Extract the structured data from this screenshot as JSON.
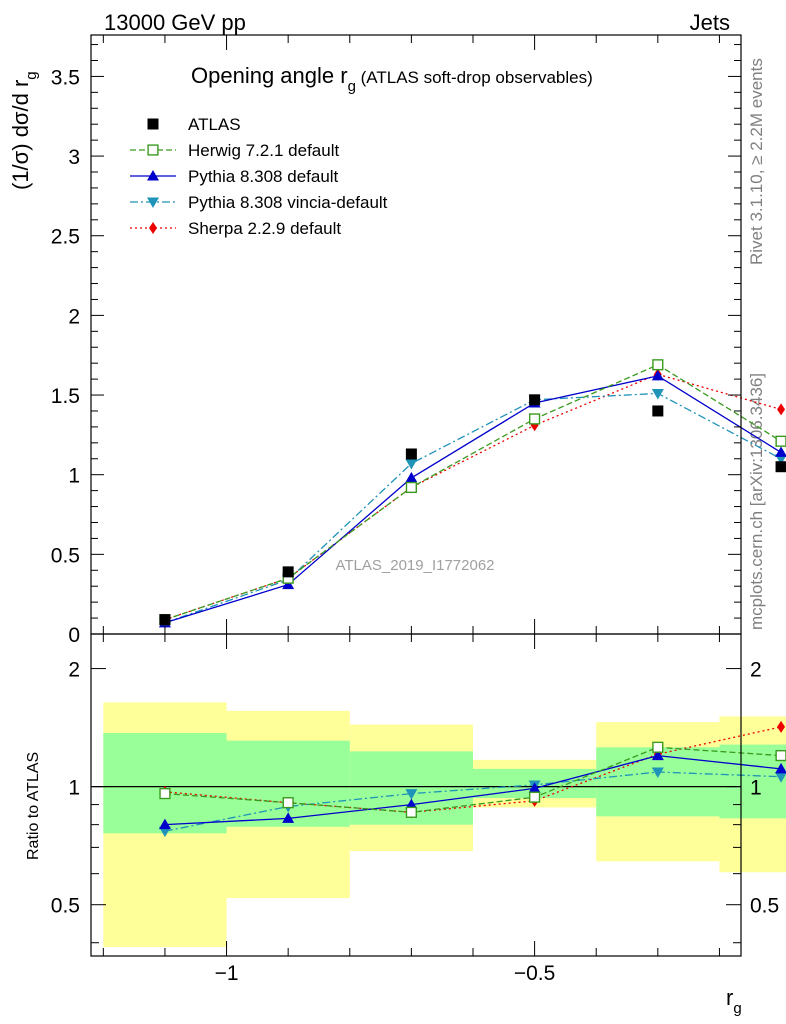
{
  "header": {
    "energy": "13000 GeV pp",
    "process": "Jets",
    "rivet": "Rivet 3.1.10, ≥ 2.2M events",
    "source": "mcplots.cern.ch [arXiv:1306.3436]",
    "analysis": "ATLAS_2019_I1772062"
  },
  "main_plot": {
    "title_main": "Opening angle r",
    "title_sub": "g",
    "title_rest": " (ATLAS soft-drop observables)",
    "ylabel": "(1/σ) dσ/d r",
    "ylabel_sub": "g",
    "y_ticks": [
      "0",
      "0.5",
      "1",
      "1.5",
      "2",
      "2.5",
      "3",
      "3.5"
    ]
  },
  "ratio_plot": {
    "ylabel": "Ratio to ATLAS",
    "y_ticks": [
      "0.5",
      "1",
      "2"
    ],
    "x_ticks": [
      "−1",
      "−0.5"
    ],
    "xlabel": "r",
    "xlabel_sub": "g"
  },
  "legend": [
    {
      "label": "ATLAS"
    },
    {
      "label": "Herwig 7.2.1 default"
    },
    {
      "label": "Pythia 8.308 default"
    },
    {
      "label": "Pythia 8.308 vincia-default"
    },
    {
      "label": "Sherpa 2.2.9 default"
    }
  ],
  "chart_data": [
    {
      "type": "line",
      "title": "Opening angle r_g (ATLAS soft-drop observables)",
      "xlabel": "r_g",
      "ylabel": "(1/σ) dσ/d r_g",
      "xlim": [
        -1.22,
        -0.165
      ],
      "ylim": [
        0,
        3.76
      ],
      "x": [
        -1.1,
        -0.9,
        -0.7,
        -0.5,
        -0.3,
        -0.1
      ],
      "bin_edges": [
        -1.2,
        -1.0,
        -0.8,
        -0.6,
        -0.4,
        -0.2,
        -0.05
      ],
      "series": [
        {
          "name": "ATLAS",
          "values": [
            0.09,
            0.39,
            1.13,
            1.47,
            1.4,
            1.05
          ],
          "color": "#000000",
          "marker": "square"
        },
        {
          "name": "Herwig 7.2.1 default",
          "values": [
            0.09,
            0.35,
            0.92,
            1.35,
            1.69,
            1.21
          ],
          "color": "#3a9a1e",
          "marker": "open-square",
          "dash": "dashed"
        },
        {
          "name": "Pythia 8.308 default",
          "values": [
            0.07,
            0.31,
            0.98,
            1.45,
            1.62,
            1.14
          ],
          "color": "#0000cc",
          "marker": "triangle-up",
          "dash": "solid"
        },
        {
          "name": "Pythia 8.308 vincia-default",
          "values": [
            0.07,
            0.34,
            1.07,
            1.47,
            1.51,
            1.1
          ],
          "color": "#1f93b8",
          "marker": "triangle-down",
          "dash": "dashdot"
        },
        {
          "name": "Sherpa 2.2.9 default",
          "values": [
            0.09,
            0.35,
            0.92,
            1.31,
            1.63,
            1.41
          ],
          "color": "#ee0000",
          "marker": "diamond",
          "dash": "dotted"
        }
      ]
    },
    {
      "type": "line",
      "title": "",
      "xlabel": "r_g",
      "ylabel": "Ratio to ATLAS",
      "xlim": [
        -1.22,
        -0.165
      ],
      "ylim": [
        0.37,
        2.45
      ],
      "log_y": true,
      "x": [
        -1.1,
        -0.9,
        -0.7,
        -0.5,
        -0.3,
        -0.1
      ],
      "reference": 1,
      "bands": {
        "bin_edges": [
          -1.2,
          -1.0,
          -0.8,
          -0.6,
          -0.4,
          -0.2,
          -0.05
        ],
        "yellow_low": [
          0.39,
          0.52,
          0.685,
          0.885,
          0.645,
          0.605
        ],
        "yellow_high": [
          1.64,
          1.56,
          1.44,
          1.17,
          1.46,
          1.51
        ],
        "green_low": [
          0.76,
          0.79,
          0.8,
          0.935,
          0.84,
          0.83
        ],
        "green_high": [
          1.37,
          1.31,
          1.23,
          1.11,
          1.26,
          1.28
        ]
      },
      "series": [
        {
          "name": "Herwig 7.2.1 default",
          "values": [
            0.96,
            0.91,
            0.86,
            0.94,
            1.26,
            1.2
          ],
          "color": "#3a9a1e",
          "marker": "open-square",
          "dash": "dashed"
        },
        {
          "name": "Pythia 8.308 default",
          "values": [
            0.8,
            0.83,
            0.9,
            0.99,
            1.2,
            1.11
          ],
          "color": "#0000cc",
          "marker": "triangle-up",
          "dash": "solid"
        },
        {
          "name": "Pythia 8.308 vincia-default",
          "values": [
            0.77,
            0.89,
            0.96,
            1.01,
            1.09,
            1.06
          ],
          "color": "#1f93b8",
          "marker": "triangle-down",
          "dash": "dashdot"
        },
        {
          "name": "Sherpa 2.2.9 default",
          "values": [
            0.97,
            0.91,
            0.86,
            0.92,
            1.21,
            1.42
          ],
          "color": "#ee0000",
          "marker": "diamond",
          "dash": "dotted"
        }
      ]
    }
  ]
}
